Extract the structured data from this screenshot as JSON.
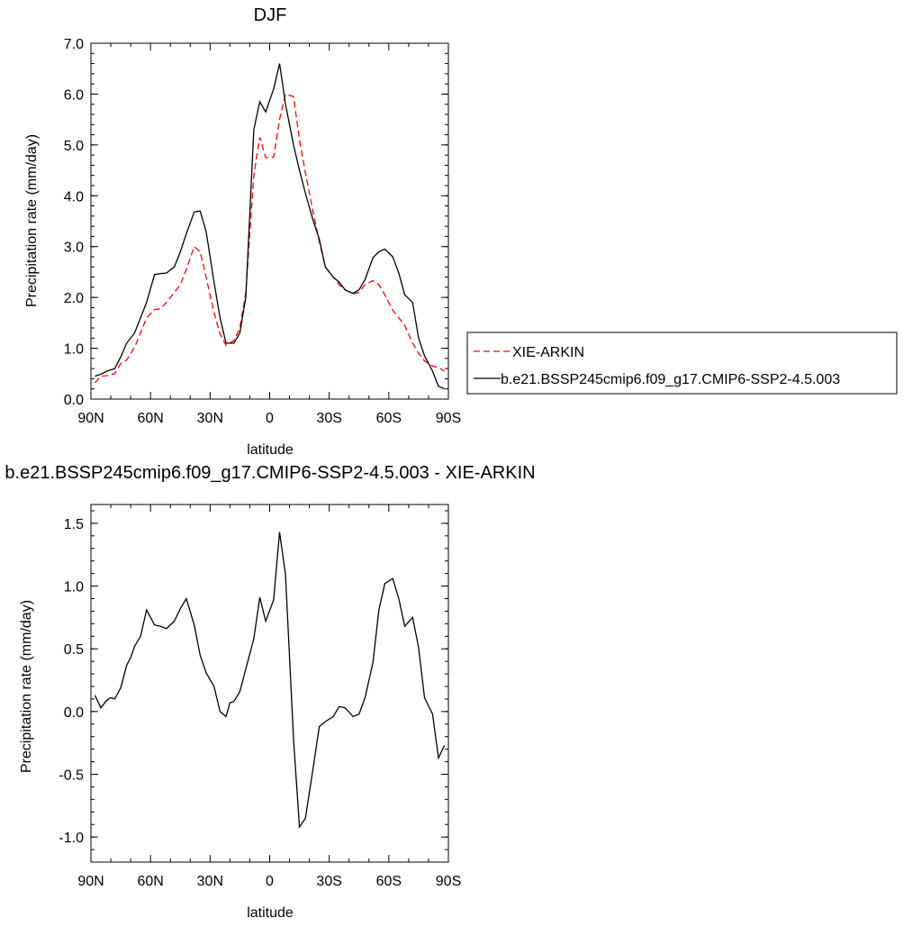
{
  "chart_data": [
    {
      "type": "line",
      "title": "DJF",
      "xlabel": "latitude",
      "ylabel": "Precipitation rate (mm/day)",
      "xlim": [
        90,
        -90
      ],
      "ylim": [
        0,
        7
      ],
      "x_ticks": [
        {
          "value": 90,
          "label": "90N"
        },
        {
          "value": 60,
          "label": "60N"
        },
        {
          "value": 30,
          "label": "30N"
        },
        {
          "value": 0,
          "label": "0"
        },
        {
          "value": -30,
          "label": "30S"
        },
        {
          "value": -60,
          "label": "60S"
        },
        {
          "value": -90,
          "label": "90S"
        }
      ],
      "y_ticks": [
        {
          "value": 0,
          "label": "0.0"
        },
        {
          "value": 1,
          "label": "1.0"
        },
        {
          "value": 2,
          "label": "2.0"
        },
        {
          "value": 3,
          "label": "3.0"
        },
        {
          "value": 4,
          "label": "4.0"
        },
        {
          "value": 5,
          "label": "5.0"
        },
        {
          "value": 6,
          "label": "6.0"
        },
        {
          "value": 7,
          "label": "7.0"
        }
      ],
      "legend": "right",
      "series": [
        {
          "name": "XIE-ARKIN",
          "color": "#ff0000",
          "dash": "dashed",
          "x": [
            88,
            85,
            82,
            78,
            75,
            72,
            68,
            65,
            62,
            58,
            55,
            52,
            48,
            45,
            42,
            38,
            35,
            32,
            28,
            25,
            22,
            18,
            15,
            12,
            8,
            5,
            2,
            -2,
            -5,
            -8,
            -12,
            -15,
            -18,
            -22,
            -25,
            -28,
            -32,
            -35,
            -38,
            -42,
            -45,
            -48,
            -52,
            -55,
            -58,
            -62,
            -65,
            -68,
            -72,
            -75,
            -78,
            -82,
            -85,
            -88
          ],
          "values": [
            0.32,
            0.45,
            0.46,
            0.5,
            0.7,
            0.77,
            1.02,
            1.3,
            1.6,
            1.76,
            1.78,
            1.9,
            2.1,
            2.25,
            2.55,
            3.0,
            2.9,
            2.4,
            1.7,
            1.28,
            1.06,
            1.15,
            1.4,
            2.1,
            4.4,
            5.15,
            4.75,
            4.76,
            5.5,
            6.0,
            5.95,
            5.1,
            4.45,
            3.65,
            3.1,
            2.6,
            2.4,
            2.25,
            2.15,
            2.07,
            2.1,
            2.25,
            2.33,
            2.25,
            2.05,
            1.75,
            1.6,
            1.45,
            1.1,
            0.9,
            0.75,
            0.65,
            0.62,
            0.55
          ]
        },
        {
          "name": "b.e21.BSSP245cmip6.f09_g17.CMIP6-SSP2-4.5.003",
          "color": "#000000",
          "dash": "solid",
          "x": [
            88,
            85,
            82,
            78,
            75,
            72,
            68,
            65,
            62,
            58,
            55,
            52,
            48,
            45,
            42,
            38,
            35,
            32,
            28,
            25,
            22,
            18,
            15,
            12,
            8,
            5,
            2,
            -2,
            -5,
            -8,
            -12,
            -15,
            -18,
            -22,
            -25,
            -28,
            -32,
            -35,
            -38,
            -42,
            -45,
            -48,
            -52,
            -55,
            -58,
            -62,
            -65,
            -68,
            -72,
            -75,
            -78,
            -82,
            -85,
            -88
          ],
          "values": [
            0.45,
            0.49,
            0.55,
            0.6,
            0.83,
            1.1,
            1.3,
            1.6,
            1.9,
            2.45,
            2.47,
            2.48,
            2.6,
            2.9,
            3.25,
            3.68,
            3.7,
            3.3,
            2.3,
            1.6,
            1.1,
            1.1,
            1.3,
            2.0,
            5.3,
            5.85,
            5.65,
            6.1,
            6.6,
            5.8,
            5.0,
            4.5,
            4.05,
            3.5,
            3.15,
            2.6,
            2.4,
            2.3,
            2.15,
            2.08,
            2.15,
            2.35,
            2.78,
            2.9,
            2.95,
            2.8,
            2.48,
            2.05,
            1.9,
            1.2,
            0.85,
            0.55,
            0.25,
            0.2
          ]
        }
      ]
    },
    {
      "type": "line",
      "title": "b.e21.BSSP245cmip6.f09_g17.CMIP6-SSP2-4.5.003 - XIE-ARKIN",
      "xlabel": "latitude",
      "ylabel": "Precipitation rate (mm/day)",
      "xlim": [
        90,
        -90
      ],
      "ylim": [
        -1.2,
        1.65
      ],
      "x_ticks": [
        {
          "value": 90,
          "label": "90N"
        },
        {
          "value": 60,
          "label": "60N"
        },
        {
          "value": 30,
          "label": "30N"
        },
        {
          "value": 0,
          "label": "0"
        },
        {
          "value": -30,
          "label": "30S"
        },
        {
          "value": -60,
          "label": "60S"
        },
        {
          "value": -90,
          "label": "90S"
        }
      ],
      "y_ticks": [
        {
          "value": 1.5,
          "label": "1.5"
        },
        {
          "value": 1.0,
          "label": "1.0"
        },
        {
          "value": 0.5,
          "label": "0.5"
        },
        {
          "value": 0.0,
          "label": "0.0"
        },
        {
          "value": -0.5,
          "label": "-0.5"
        },
        {
          "value": -1.0,
          "label": "-1.0"
        }
      ],
      "series": [
        {
          "color": "#000000",
          "dash": "solid",
          "x": [
            88,
            85,
            82,
            80,
            78,
            75,
            72,
            70,
            68,
            65,
            62,
            58,
            55,
            52,
            48,
            45,
            42,
            38,
            35,
            32,
            28,
            25,
            22,
            20,
            18,
            15,
            12,
            8,
            5,
            2,
            -2,
            -5,
            -8,
            -12,
            -15,
            -18,
            -22,
            -25,
            -28,
            -32,
            -35,
            -38,
            -42,
            -45,
            -48,
            -52,
            -55,
            -58,
            -62,
            -65,
            -68,
            -72,
            -75,
            -78,
            -82,
            -85,
            -88
          ],
          "values": [
            0.13,
            0.03,
            0.09,
            0.11,
            0.1,
            0.19,
            0.37,
            0.43,
            0.52,
            0.6,
            0.81,
            0.69,
            0.68,
            0.66,
            0.72,
            0.82,
            0.9,
            0.69,
            0.45,
            0.31,
            0.2,
            0.0,
            -0.04,
            0.07,
            0.08,
            0.16,
            0.34,
            0.58,
            0.91,
            0.72,
            0.89,
            1.43,
            1.09,
            -0.22,
            -0.92,
            -0.85,
            -0.44,
            -0.12,
            -0.08,
            -0.04,
            0.04,
            0.03,
            -0.04,
            -0.02,
            0.11,
            0.39,
            0.81,
            1.02,
            1.06,
            0.9,
            0.68,
            0.75,
            0.51,
            0.11,
            -0.02,
            -0.37,
            -0.27
          ]
        }
      ]
    }
  ]
}
